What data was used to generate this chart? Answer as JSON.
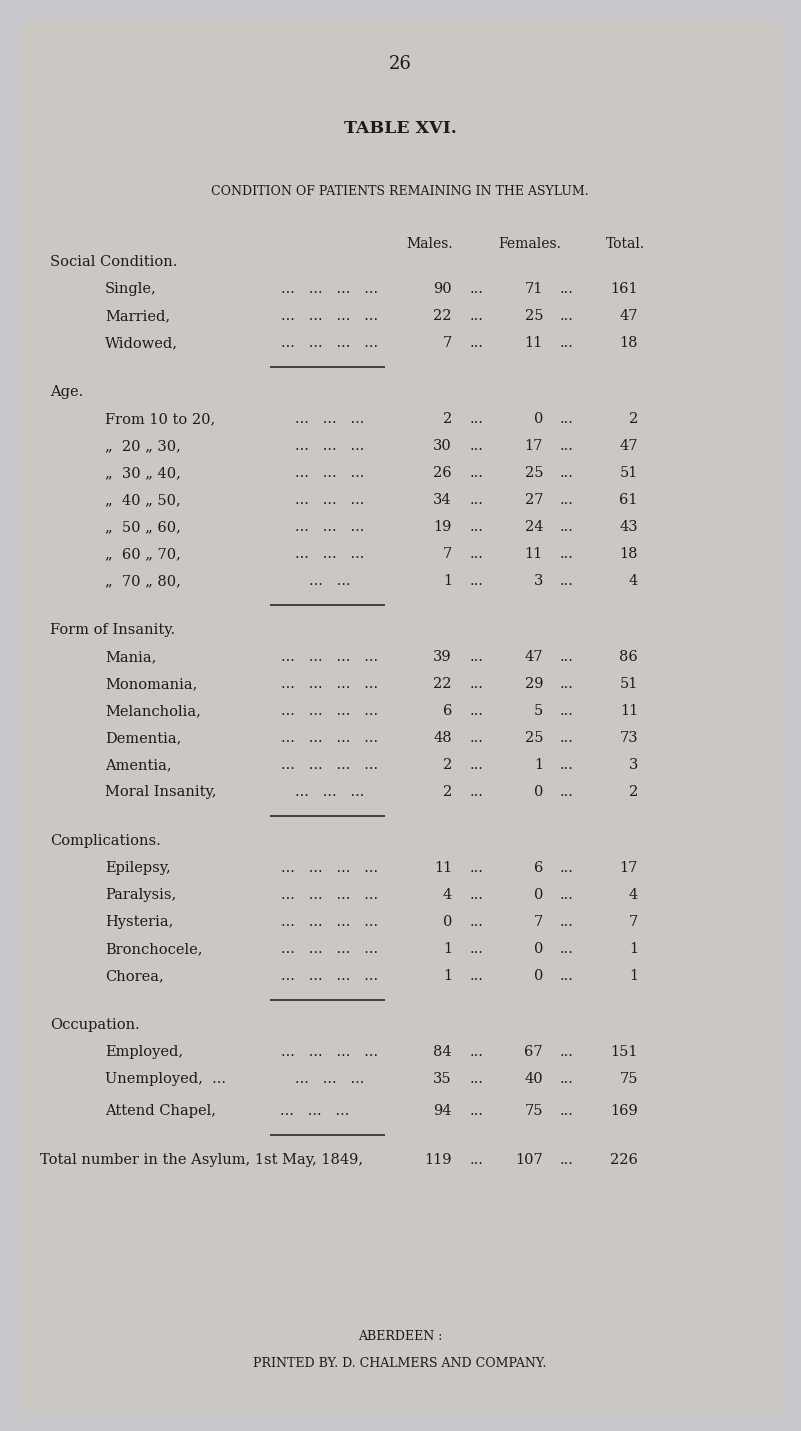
{
  "page_number": "26",
  "title": "TABLE XVI.",
  "subtitle": "CONDITION OF PATIENTS REMAINING IN THE ASYLUM.",
  "bg_color": "#c8c8cc",
  "paper_color": "#d4d0cc",
  "text_color": "#1c1c1c",
  "col_headers": [
    "Males.",
    "Females.",
    "Total."
  ],
  "sections": [
    {
      "header": "Social Condition.",
      "rows": [
        {
          "label": "Single,",
          "dots": "...   ...   ...   ...",
          "m": "90",
          "f": "71",
          "t": "161"
        },
        {
          "label": "Married,",
          "dots": "...   ...   ...   ...",
          "m": "22",
          "f": "25",
          "t": "47"
        },
        {
          "label": "Widowed,",
          "dots": "...   ...   ...   ...",
          "m": "7",
          "f": "11",
          "t": "18"
        }
      ],
      "divider": true
    },
    {
      "header": "Age.",
      "rows": [
        {
          "label": "From 10 to 20,",
          "dots": "...   ...   ...",
          "m": "2",
          "f": "0",
          "t": "2"
        },
        {
          "label": "„  20 „ 30,",
          "dots": "...   ...   ...",
          "m": "30",
          "f": "17",
          "t": "47"
        },
        {
          "label": "„  30 „ 40,",
          "dots": "...   ...   ...",
          "m": "26",
          "f": "25",
          "t": "51"
        },
        {
          "label": "„  40 „ 50,",
          "dots": "...   ...   ...",
          "m": "34",
          "f": "27",
          "t": "61"
        },
        {
          "label": "„  50 „ 60,",
          "dots": "...   ...   ...",
          "m": "19",
          "f": "24",
          "t": "43"
        },
        {
          "label": "„  60 „ 70,",
          "dots": "...   ...   ...",
          "m": "7",
          "f": "11",
          "t": "18"
        },
        {
          "label": "„  70 „ 80,",
          "dots": "...   ...",
          "m": "1",
          "f": "3",
          "t": "4"
        }
      ],
      "divider": true
    },
    {
      "header": "Form of Insanity.",
      "rows": [
        {
          "label": "Mania,",
          "dots": "...   ...   ...   ...",
          "m": "39",
          "f": "47",
          "t": "86"
        },
        {
          "label": "Monomania,",
          "dots": "...   ...   ...   ...",
          "m": "22",
          "f": "29",
          "t": "51"
        },
        {
          "label": "Melancholia,",
          "dots": "...   ...   ...   ...",
          "m": "6",
          "f": "5",
          "t": "11"
        },
        {
          "label": "Dementia,",
          "dots": "...   ...   ...   ...",
          "m": "48",
          "f": "25",
          "t": "73"
        },
        {
          "label": "Amentia,",
          "dots": "...   ...   ...   ...",
          "m": "2",
          "f": "1",
          "t": "3"
        },
        {
          "label": "Moral Insanity,",
          "dots": "...   ...   ...",
          "m": "2",
          "f": "0",
          "t": "2"
        }
      ],
      "divider": true
    },
    {
      "header": "Complications.",
      "rows": [
        {
          "label": "Epilepsy,",
          "dots": "...   ...   ...   ...",
          "m": "11",
          "f": "6",
          "t": "17"
        },
        {
          "label": "Paralysis,",
          "dots": "...   ...   ...   ...",
          "m": "4",
          "f": "0",
          "t": "4"
        },
        {
          "label": "Hysteria,",
          "dots": "...   ...   ...   ...",
          "m": "0",
          "f": "7",
          "t": "7"
        },
        {
          "label": "Bronchocele,",
          "dots": "...   ...   ...   ...",
          "m": "1",
          "f": "0",
          "t": "1"
        },
        {
          "label": "Chorea,",
          "dots": "...   ...   ...   ...",
          "m": "1",
          "f": "0",
          "t": "1"
        }
      ],
      "divider": true
    },
    {
      "header": "Occupation.",
      "rows": [
        {
          "label": "Employed,",
          "dots": "...   ...   ...   ...",
          "m": "84",
          "f": "67",
          "t": "151"
        },
        {
          "label": "Unemployed,  ...",
          "dots": "...   ...   ...",
          "m": "35",
          "f": "40",
          "t": "75"
        }
      ],
      "divider": false
    }
  ],
  "attend_chapel": {
    "label": "Attend Chapel,",
    "dots": "...   ...   ...",
    "m": "94",
    "f": "75",
    "t": "169"
  },
  "total_row": {
    "label": "Total number in the Asylum, 1st May, 1849,",
    "m": "119",
    "f": "107",
    "t": "226"
  },
  "footer1": "ABERDEEN :",
  "footer2": "PRINTED BY. D. CHALMERS AND COMPANY."
}
